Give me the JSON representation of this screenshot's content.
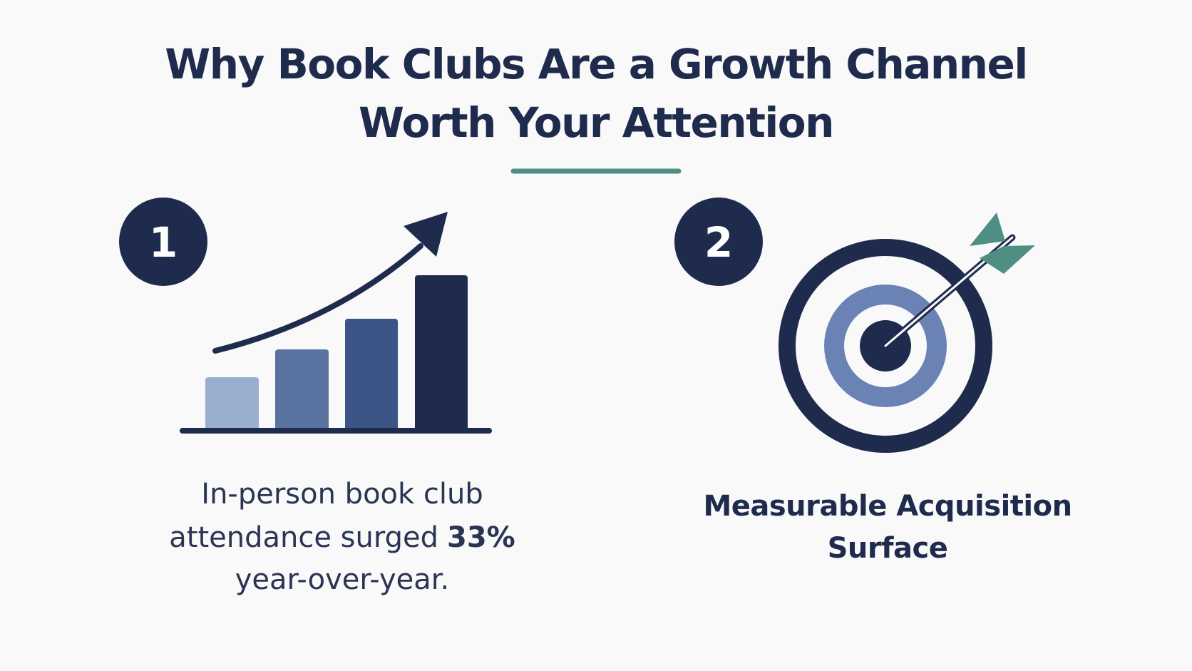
{
  "header": {
    "title_lines": [
      "Why Book Clubs Are a Growth Channel",
      "Worth Your Attention"
    ]
  },
  "items": [
    {
      "number": "1",
      "text_lines": [
        "In-person book club",
        "attendance surged",
        "33%",
        "year-over-year."
      ]
    },
    {
      "number": "2",
      "label_lines": [
        "Measurable Acquisition",
        "Surface"
      ]
    }
  ]
}
